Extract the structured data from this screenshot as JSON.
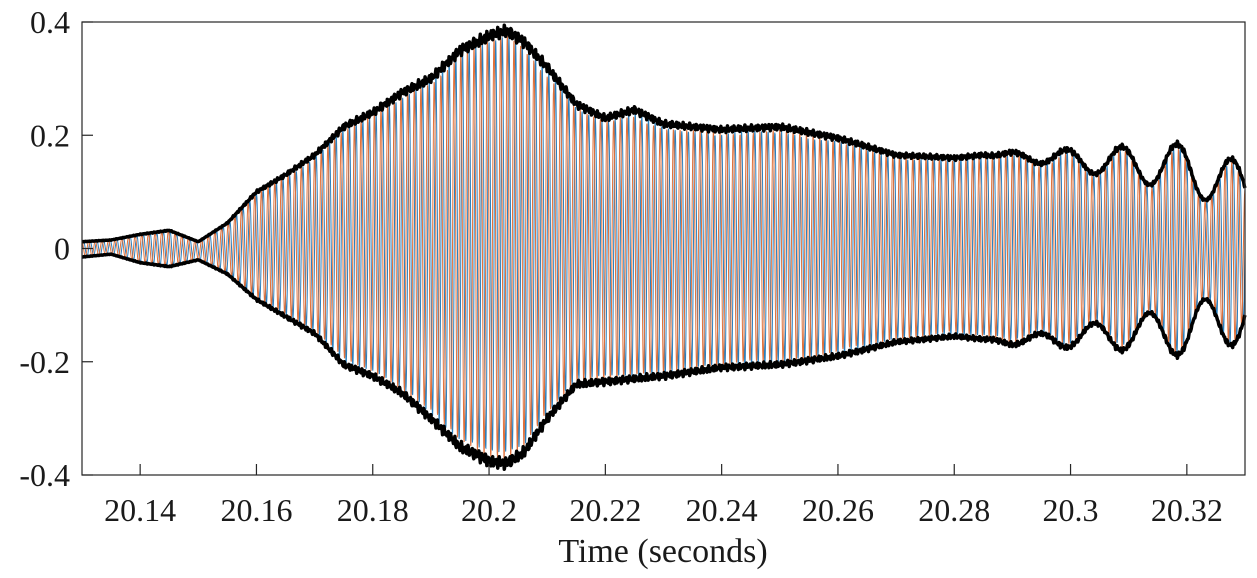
{
  "chart_data": {
    "type": "line",
    "title": "",
    "xlabel": "Time (seconds)",
    "ylabel": "",
    "xlim": [
      20.13,
      20.33
    ],
    "ylim": [
      -0.4,
      0.4
    ],
    "grid": false,
    "x_ticks": [
      20.14,
      20.16,
      20.18,
      20.2,
      20.22,
      20.24,
      20.26,
      20.28,
      20.3,
      20.32
    ],
    "x_tick_labels": [
      "20.14",
      "20.16",
      "20.18",
      "20.2",
      "20.22",
      "20.24",
      "20.26",
      "20.28",
      "20.3",
      "20.32"
    ],
    "y_ticks": [
      0.4,
      0.2,
      0,
      -0.2,
      -0.4
    ],
    "y_tick_labels": [
      "0.4",
      "0.2",
      "0",
      "-0.2",
      "-0.4"
    ],
    "signal_colors": {
      "series_a": "#2b7fbd",
      "series_b": "#e0703a",
      "envelope": "#000000"
    },
    "carrier_cycles_in_view": 175,
    "envelope": {
      "x": [
        20.13,
        20.135,
        20.14,
        20.145,
        20.15,
        20.155,
        20.16,
        20.165,
        20.17,
        20.175,
        20.18,
        20.185,
        20.19,
        20.195,
        20.2,
        20.203,
        20.206,
        20.21,
        20.215,
        20.22,
        20.225,
        20.23,
        20.24,
        20.25,
        20.26,
        20.27,
        20.28,
        20.285,
        20.29,
        20.3,
        20.31,
        20.32,
        20.33
      ],
      "upper": [
        0.012,
        0.015,
        0.025,
        0.032,
        0.012,
        0.045,
        0.1,
        0.13,
        0.165,
        0.215,
        0.24,
        0.275,
        0.3,
        0.35,
        0.375,
        0.385,
        0.365,
        0.32,
        0.255,
        0.23,
        0.245,
        0.22,
        0.21,
        0.215,
        0.195,
        0.165,
        0.16,
        0.165,
        0.17,
        0.175,
        0.18,
        0.185,
        0.15
      ],
      "lower": [
        -0.015,
        -0.01,
        -0.025,
        -0.032,
        -0.02,
        -0.045,
        -0.09,
        -0.12,
        -0.15,
        -0.205,
        -0.225,
        -0.255,
        -0.3,
        -0.35,
        -0.375,
        -0.38,
        -0.36,
        -0.3,
        -0.24,
        -0.235,
        -0.23,
        -0.225,
        -0.21,
        -0.205,
        -0.19,
        -0.165,
        -0.155,
        -0.16,
        -0.17,
        -0.175,
        -0.18,
        -0.19,
        -0.165
      ]
    },
    "envelope_modulation": {
      "x": [
        20.13,
        20.285,
        20.33
      ],
      "depth": [
        0,
        0,
        0.6
      ]
    }
  }
}
